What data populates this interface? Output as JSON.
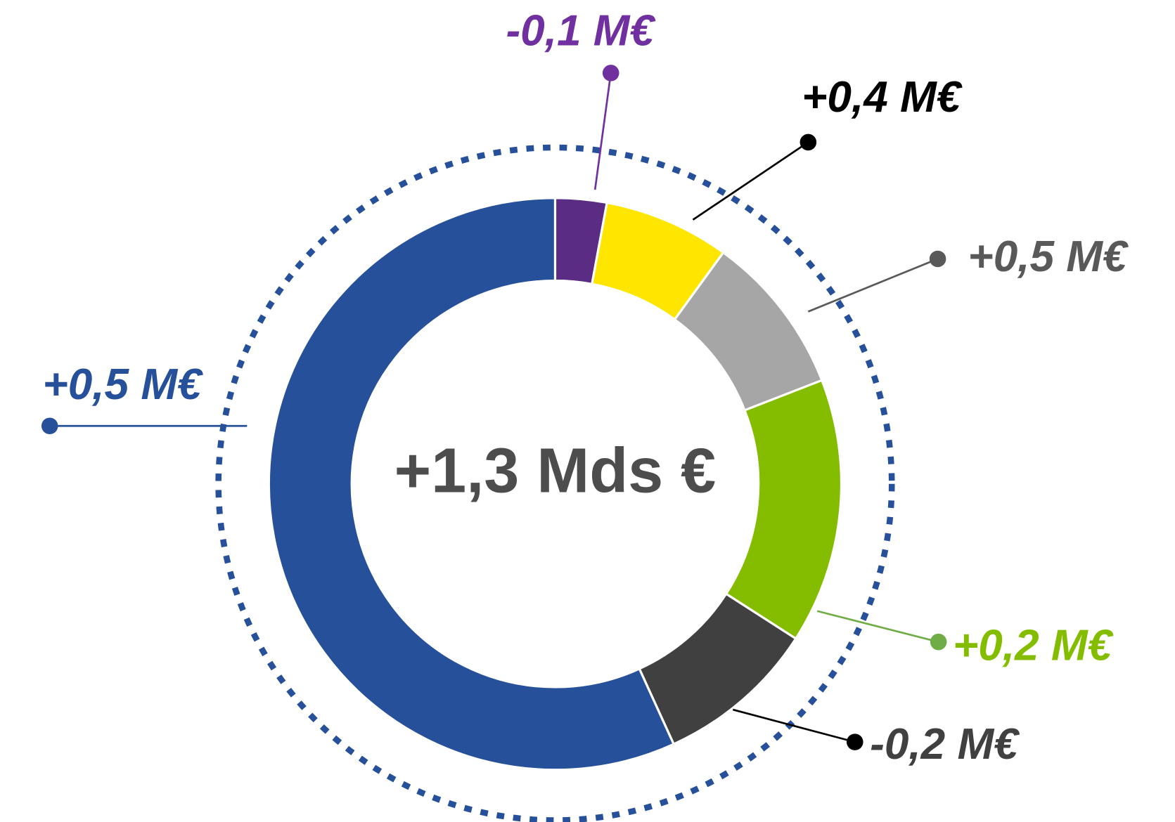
{
  "chart_data": {
    "type": "donut",
    "center_label": "+1,3 Mds €",
    "categories": [
      null,
      null,
      null,
      null,
      null,
      null
    ],
    "values": [
      2.9,
      7.1,
      9.1,
      15.0,
      9.1,
      56.8
    ],
    "colors": [
      "#5b2c83",
      "#ffe600",
      "#a6a6a6",
      "#84bd00",
      "#404040",
      "#27509b"
    ],
    "annotations": [
      {
        "text": "-0,1 M€",
        "color": "#7030a0",
        "marker_color": "#7030a0"
      },
      {
        "text": "+0,4 M€",
        "color": "#000000",
        "marker_color": "#000000"
      },
      {
        "text": "+0,5 M€",
        "color": "#595959",
        "marker_color": "#595959"
      },
      {
        "text": "+0,2 M€",
        "color": "#84bd00",
        "marker_color": "#70ad47"
      },
      {
        "text": "-0,2 M€",
        "color": "#404040",
        "marker_color": "#000000"
      },
      {
        "text": "+0,5 M€",
        "color": "#27509b",
        "marker_color": "#27509b"
      }
    ],
    "ring_color": "#27509b"
  }
}
